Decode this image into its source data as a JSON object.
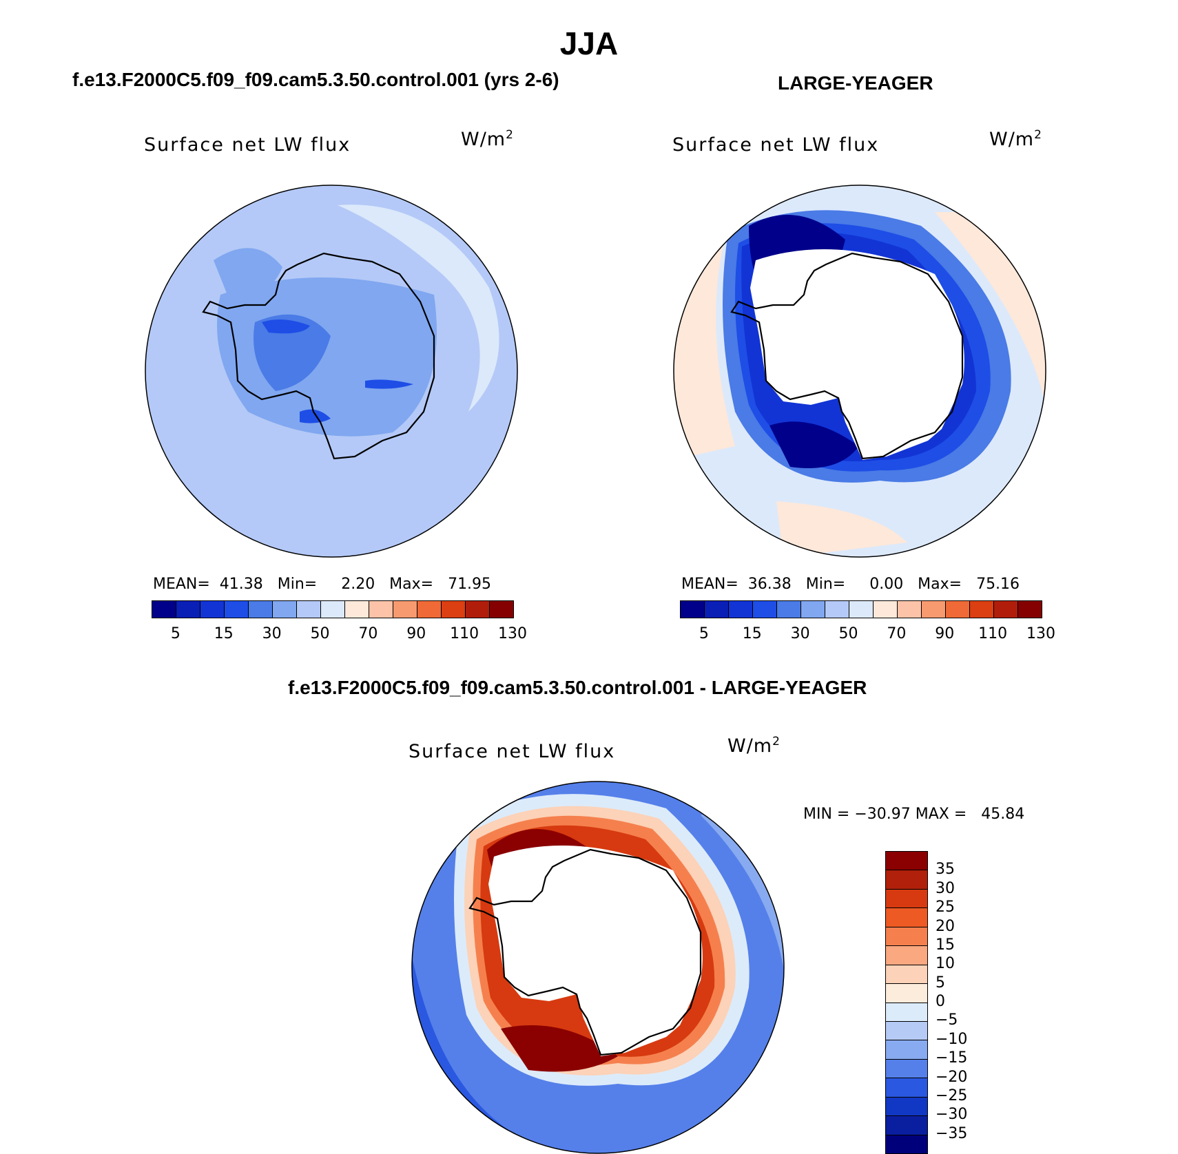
{
  "title": "JJA",
  "panels": [
    {
      "case_title": "f.e13.F2000C5.f09_f09.cam5.3.50.control.001 (yrs 2-6)",
      "plot_title": "Surface net LW flux",
      "units": "W/m",
      "units_exp": "2",
      "stats": "MEAN=  41.38   Min=     2.20   Max=   71.95",
      "colorbar_ticks": [
        "5",
        "15",
        "30",
        "50",
        "70",
        "90",
        "110",
        "130"
      ]
    },
    {
      "case_title": "LARGE-YEAGER",
      "plot_title": "Surface net LW flux",
      "units": "W/m",
      "units_exp": "2",
      "stats": "MEAN=  36.38   Min=     0.00   Max=   75.16",
      "colorbar_ticks": [
        "5",
        "15",
        "30",
        "50",
        "70",
        "90",
        "110",
        "130"
      ]
    }
  ],
  "diff_panel": {
    "case_title": "f.e13.F2000C5.f09_f09.cam5.3.50.control.001 - LARGE-YEAGER",
    "plot_title": "Surface net LW flux",
    "units": "W/m",
    "units_exp": "2",
    "stats": "MIN = −30.97 MAX =   45.84",
    "colorbar_ticks": [
      "35",
      "30",
      "25",
      "20",
      "15",
      "10",
      "5",
      "0",
      "−5",
      "−10",
      "−15",
      "−20",
      "−25",
      "−30",
      "−35"
    ]
  },
  "colors": {
    "abs_scale": [
      "#00008b",
      "#0a1fb5",
      "#1234d5",
      "#1e4ee6",
      "#4a7be6",
      "#80a7f0",
      "#b4c9f7",
      "#dce9fb",
      "#fde8da",
      "#fcc3a8",
      "#f79a70",
      "#ef6a36",
      "#db3f12",
      "#b01e0b",
      "#850000"
    ],
    "diff_scale": [
      "#8b0000",
      "#b0200b",
      "#d73a10",
      "#ee5a24",
      "#f5804e",
      "#f9a880",
      "#fcd2b8",
      "#fcecdc",
      "#dcebfa",
      "#b5cbf6",
      "#88aaf0",
      "#5580ea",
      "#2a58e0",
      "#1138c4",
      "#0a1ea0",
      "#00007a"
    ],
    "land": "#ffffff",
    "coast": "#000000"
  }
}
